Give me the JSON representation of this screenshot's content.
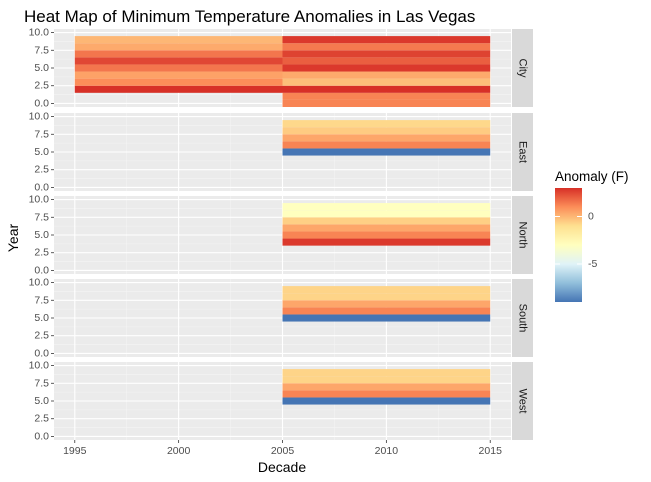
{
  "chart_data": {
    "type": "heatmap",
    "title": "Heat Map of Minimum Temperature Anomalies in Las Vegas",
    "xlabel": "Decade",
    "ylabel": "Year",
    "x_ticks": [
      "1995",
      "2000",
      "2005",
      "2010",
      "2015"
    ],
    "x_range": [
      1994,
      2016
    ],
    "y_ticks": [
      "0.0",
      "2.5",
      "5.0",
      "7.5",
      "10.0"
    ],
    "y_range": [
      -0.5,
      10.5
    ],
    "legend": {
      "title": "Anomaly (F)",
      "labels": [
        "0",
        "-5"
      ],
      "label_values": [
        0,
        -5
      ],
      "min": -9,
      "max": 3,
      "colors": [
        "#4575b4",
        "#91bfdb",
        "#e0f3f8",
        "#ffffbf",
        "#fee090",
        "#fc8d59",
        "#d73027"
      ]
    },
    "facets": [
      {
        "label": "City",
        "series": [
          {
            "x_start": 1995,
            "x_end": 2005,
            "cells": [
              {
                "y": 2,
                "value": 3
              },
              {
                "y": 3,
                "value": 1
              },
              {
                "y": 4,
                "value": 0.5
              },
              {
                "y": 5,
                "value": 1.5
              },
              {
                "y": 6,
                "value": 2.5
              },
              {
                "y": 7,
                "value": 1.5
              },
              {
                "y": 8,
                "value": 0.3
              },
              {
                "y": 9,
                "value": 0
              }
            ]
          },
          {
            "x_start": 2005,
            "x_end": 2015,
            "cells": [
              {
                "y": 0,
                "value": 1.2
              },
              {
                "y": 1,
                "value": 1.2
              },
              {
                "y": 2,
                "value": 3
              },
              {
                "y": 3,
                "value": -0.2
              },
              {
                "y": 4,
                "value": 0.3
              },
              {
                "y": 5,
                "value": 2.8
              },
              {
                "y": 6,
                "value": 2
              },
              {
                "y": 7,
                "value": 2.6
              },
              {
                "y": 8,
                "value": 1.4
              },
              {
                "y": 9,
                "value": 2.8
              }
            ]
          }
        ]
      },
      {
        "label": "East",
        "series": [
          {
            "x_start": 2005,
            "x_end": 2015,
            "cells": [
              {
                "y": 5,
                "value": -9
              },
              {
                "y": 6,
                "value": 1.2
              },
              {
                "y": 7,
                "value": 0.4
              },
              {
                "y": 8,
                "value": -0.5
              },
              {
                "y": 9,
                "value": -0.8
              }
            ]
          }
        ]
      },
      {
        "label": "North",
        "series": [
          {
            "x_start": 2005,
            "x_end": 2015,
            "cells": [
              {
                "y": 4,
                "value": 2.8
              },
              {
                "y": 5,
                "value": 1.2
              },
              {
                "y": 6,
                "value": 0.4
              },
              {
                "y": 7,
                "value": -0.6
              },
              {
                "y": 8,
                "value": -3
              },
              {
                "y": 9,
                "value": -3
              }
            ]
          }
        ]
      },
      {
        "label": "South",
        "series": [
          {
            "x_start": 2005,
            "x_end": 2015,
            "cells": [
              {
                "y": 5,
                "value": -9
              },
              {
                "y": 6,
                "value": 1.2
              },
              {
                "y": 7,
                "value": 0.4
              },
              {
                "y": 8,
                "value": -0.7
              },
              {
                "y": 9,
                "value": -0.7
              }
            ]
          }
        ]
      },
      {
        "label": "West",
        "series": [
          {
            "x_start": 2005,
            "x_end": 2015,
            "cells": [
              {
                "y": 5,
                "value": -9
              },
              {
                "y": 6,
                "value": 1.2
              },
              {
                "y": 7,
                "value": 0.4
              },
              {
                "y": 8,
                "value": -0.7
              },
              {
                "y": 9,
                "value": -0.7
              }
            ]
          }
        ]
      }
    ],
    "grid": true,
    "legend_position": "right"
  }
}
